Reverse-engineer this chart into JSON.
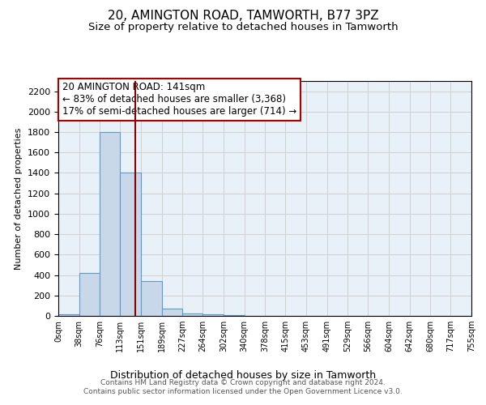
{
  "title": "20, AMINGTON ROAD, TAMWORTH, B77 3PZ",
  "subtitle": "Size of property relative to detached houses in Tamworth",
  "xlabel": "Distribution of detached houses by size in Tamworth",
  "ylabel": "Number of detached properties",
  "footer_line1": "Contains HM Land Registry data © Crown copyright and database right 2024.",
  "footer_line2": "Contains public sector information licensed under the Open Government Licence v3.0.",
  "annotation_line1": "20 AMINGTON ROAD: 141sqm",
  "annotation_line2": "← 83% of detached houses are smaller (3,368)",
  "annotation_line3": "17% of semi-detached houses are larger (714) →",
  "bins": [
    0,
    38,
    76,
    113,
    151,
    189,
    227,
    264,
    302,
    340,
    378,
    415,
    453,
    491,
    529,
    566,
    604,
    642,
    680,
    717,
    755
  ],
  "bin_labels": [
    "0sqm",
    "38sqm",
    "76sqm",
    "113sqm",
    "151sqm",
    "189sqm",
    "227sqm",
    "264sqm",
    "302sqm",
    "340sqm",
    "378sqm",
    "415sqm",
    "453sqm",
    "491sqm",
    "529sqm",
    "566sqm",
    "604sqm",
    "642sqm",
    "680sqm",
    "717sqm",
    "755sqm"
  ],
  "counts": [
    15,
    420,
    1800,
    1400,
    340,
    75,
    25,
    15,
    10,
    3,
    0,
    0,
    0,
    0,
    0,
    0,
    0,
    0,
    0,
    0
  ],
  "bar_facecolor": "#c8d8e8",
  "bar_edgecolor": "#5b9bd5",
  "redline_x": 141,
  "redline_color": "#8b0000",
  "ylim": [
    0,
    2300
  ],
  "yticks": [
    0,
    200,
    400,
    600,
    800,
    1000,
    1200,
    1400,
    1600,
    1800,
    2000,
    2200
  ],
  "grid_color": "#d0d0d0",
  "background_color": "#e8f0f8",
  "title_fontsize": 11,
  "subtitle_fontsize": 9.5,
  "annotation_box_color": "#aa0000",
  "annotation_fontsize": 8.5,
  "footer_fontsize": 6.5,
  "ylabel_fontsize": 8,
  "xlabel_fontsize": 9
}
